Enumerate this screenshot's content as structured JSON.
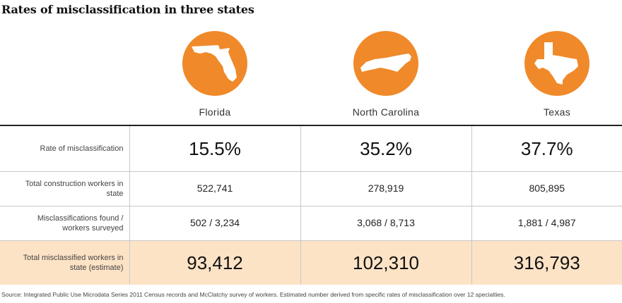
{
  "title": "Rates of misclassification in three states",
  "colors": {
    "accent": "#f0892a",
    "highlight_row": "#fde3c6"
  },
  "states": [
    {
      "name": "Florida",
      "icon": "florida-map-icon"
    },
    {
      "name": "North Carolina",
      "icon": "north-carolina-map-icon"
    },
    {
      "name": "Texas",
      "icon": "texas-map-icon"
    }
  ],
  "chart_data": {
    "type": "table",
    "title": "Rates of misclassification in three states",
    "columns": [
      "Florida",
      "North Carolina",
      "Texas"
    ],
    "rows": [
      {
        "label": "Rate of misclassification",
        "values": [
          "15.5%",
          "35.2%",
          "37.7%"
        ]
      },
      {
        "label": "Total construction workers in state",
        "values": [
          "522,741",
          "278,919",
          "805,895"
        ]
      },
      {
        "label": "Misclassifications found / workers surveyed",
        "values": [
          "502 / 3,234",
          "3,068 / 8,713",
          "1,881 / 4,987"
        ]
      },
      {
        "label": "Total misclassified workers in state (estimate)",
        "values": [
          "93,412",
          "102,310",
          "316,793"
        ]
      }
    ]
  },
  "rows_display": {
    "r1": {
      "label_line1": "Rate of misclassification",
      "label_line2": ""
    },
    "r2": {
      "label_line1": "Total construction workers in",
      "label_line2": "state"
    },
    "r3": {
      "label_line1": "Misclassifications found /",
      "label_line2": "workers surveyed"
    },
    "r4": {
      "label_line1": "Total misclassified workers in",
      "label_line2": "state (estimate)"
    }
  },
  "source": "Source: Integrated Public Use Microdata Series 2011 Census records and McClatchy survey of workers. Estimated number derived from specific rates of misclassification over 12 specialties."
}
